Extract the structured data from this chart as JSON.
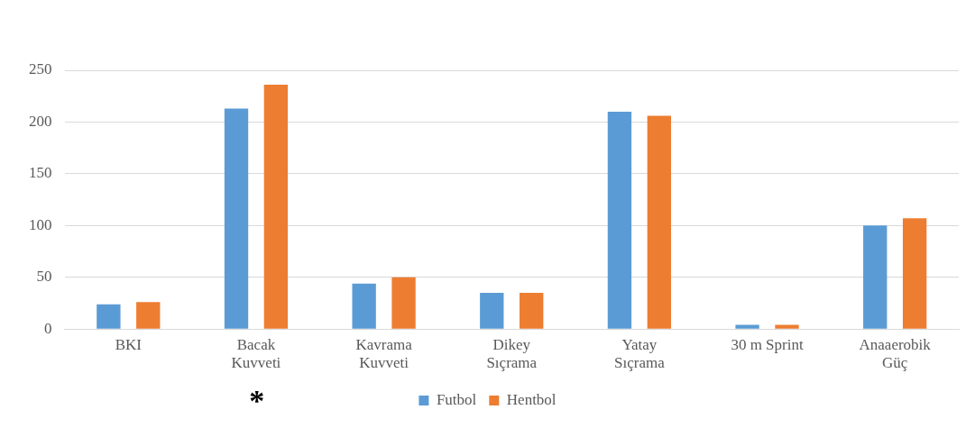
{
  "chart_data": {
    "type": "bar",
    "categories": [
      "BKI",
      "Bacak Kuvveti",
      "Kavrama Kuvveti",
      "Dikey Sıçrama",
      "Yatay Sıçrama",
      "30 m Sprint",
      "Anaaerobik Güç"
    ],
    "series": [
      {
        "name": "Futbol",
        "color": "#5b9bd5",
        "values": [
          24,
          213,
          44,
          35,
          210,
          4,
          100
        ]
      },
      {
        "name": "Hentbol",
        "color": "#ed7d31",
        "values": [
          26,
          236,
          50,
          35,
          206,
          4,
          107
        ]
      }
    ],
    "ylim": [
      0,
      250
    ],
    "yticks": [
      0,
      50,
      100,
      150,
      200,
      250
    ],
    "grid": "y",
    "legend": "bottom",
    "annotations": [
      "*"
    ]
  }
}
